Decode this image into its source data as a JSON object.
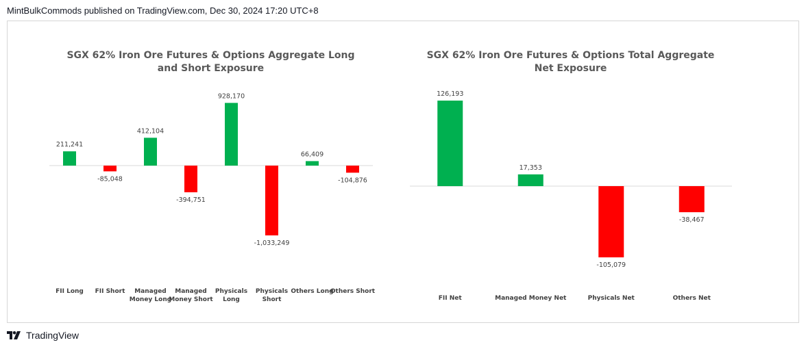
{
  "header": {
    "text": "MintBulkCommods published on TradingView.com, Dec 30, 2024 17:20 UTC+8"
  },
  "footer": {
    "brand": "TradingView",
    "logo_icon": "tradingview-logo-icon"
  },
  "colors": {
    "positive": "#00b050",
    "negative": "#ff0000",
    "axis": "#d9d9d9",
    "label": "#404040",
    "title": "#595959"
  },
  "chart_data": [
    {
      "type": "bar",
      "title": "SGX 62% Iron Ore Futures & Options Aggregate Long and Short Exposure",
      "categories": [
        "FII Long",
        "FII Short",
        "Managed Money Long",
        "Managed Money Short",
        "Physicals Long",
        "Physicals Short",
        "Others Long",
        "Others Short"
      ],
      "category_label_lines": [
        [
          "FII Long"
        ],
        [
          "FII Short"
        ],
        [
          "Managed",
          "Money Long"
        ],
        [
          "Managed",
          "Money Short"
        ],
        [
          "Physicals",
          "Long"
        ],
        [
          "Physicals",
          "Short"
        ],
        [
          "Others Long"
        ],
        [
          "Others Short"
        ]
      ],
      "values": [
        211241,
        -85048,
        412104,
        -394751,
        928170,
        -1033249,
        66409,
        -104876
      ],
      "value_labels": [
        "211,241",
        "-85,048",
        "412,104",
        "-394,751",
        "928,170",
        "-1,033,249",
        "66,409",
        "-104,876"
      ],
      "xlabel": "",
      "ylabel": "",
      "grid": false,
      "legend": "none"
    },
    {
      "type": "bar",
      "title": "SGX 62% Iron Ore Futures & Options Total Aggregate Net Exposure",
      "categories": [
        "FII Net",
        "Managed Money Net",
        "Physicals Net",
        "Others Net"
      ],
      "category_label_lines": [
        [
          "FII Net"
        ],
        [
          "Managed Money Net"
        ],
        [
          "Physicals Net"
        ],
        [
          "Others Net"
        ]
      ],
      "values": [
        126193,
        17353,
        -105079,
        -38467
      ],
      "value_labels": [
        "126,193",
        "17,353",
        "-105,079",
        "-38,467"
      ],
      "xlabel": "",
      "ylabel": "",
      "grid": false,
      "legend": "none"
    }
  ]
}
